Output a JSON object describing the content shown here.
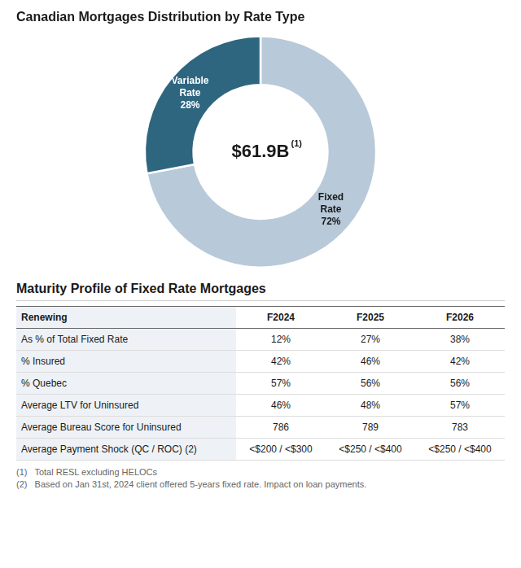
{
  "chart_data": [
    {
      "type": "doughnut",
      "title": "Canadian Mortgages Distribution by Rate Type",
      "categories": [
        "Fixed Rate",
        "Variable Rate"
      ],
      "values": [
        72,
        28
      ],
      "value_labels": [
        "72%",
        "28%"
      ],
      "colors": [
        "#b8c9d9",
        "#2e6680"
      ],
      "data_labels": true,
      "legend": false,
      "annotations": [
        "$61.9B",
        "(1)"
      ]
    },
    {
      "type": "table",
      "title": "Maturity Profile of Fixed Rate Mortgages",
      "columns": [
        "Renewing",
        "F2024",
        "F2025",
        "F2026"
      ],
      "rows": [
        [
          "As % of Total Fixed Rate",
          "12%",
          "27%",
          "38%"
        ],
        [
          "% Insured",
          "42%",
          "46%",
          "42%"
        ],
        [
          "% Quebec",
          "57%",
          "56%",
          "56%"
        ],
        [
          "Average LTV for Uninsured",
          "46%",
          "48%",
          "57%"
        ],
        [
          "Average Bureau Score for Uninsured",
          "786",
          "789",
          "783"
        ],
        [
          "Average Payment Shock (QC / ROC) (2)",
          "<$200 / <$300",
          "<$250 / <$400",
          "<$250 / <$400"
        ]
      ],
      "footnotes": [
        "(1)   Total RESL excluding HELOCs",
        "(2)   Based on Jan 31st, 2024 client offered 5-years fixed rate. Impact on loan payments."
      ]
    }
  ]
}
